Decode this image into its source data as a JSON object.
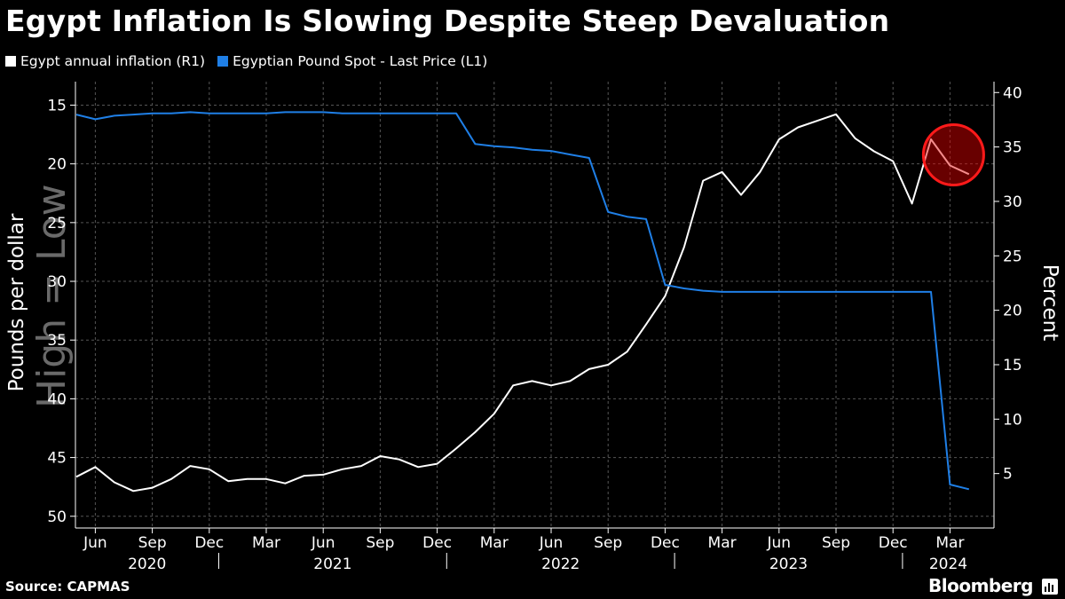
{
  "title": "Egypt Inflation Is Slowing Despite Steep Devaluation",
  "source": "Source: CAPMAS",
  "brand": "Bloomberg",
  "colors": {
    "inflation": "#ffffff",
    "pound": "#1f7fe6",
    "highlight": "#e60000",
    "background": "#000000"
  },
  "chart_data": {
    "type": "line",
    "title": "Egypt Inflation Is Slowing Despite Steep Devaluation",
    "legend": [
      {
        "name": "Egypt annual inflation (R1)",
        "color": "#ffffff"
      },
      {
        "name": "Egyptian Pound Spot - Last Price (L1)",
        "color": "#1f7fe6"
      }
    ],
    "left_axis": {
      "label": "Pounds per dollar",
      "inverted": true,
      "range": [
        13,
        51
      ],
      "ticks": [
        "15",
        "20",
        "25",
        "30",
        "35",
        "40",
        "45",
        "50"
      ]
    },
    "right_axis": {
      "label": "Percent",
      "range": [
        0,
        41
      ],
      "ticks": [
        "5",
        "10",
        "15",
        "20",
        "25",
        "30",
        "35",
        "40"
      ]
    },
    "watermark": "High = Low",
    "x_month_labels": [
      "Jun",
      "Sep",
      "Dec",
      "Mar",
      "Jun",
      "Sep",
      "Dec",
      "Mar",
      "Jun",
      "Sep",
      "Dec",
      "Mar",
      "Jun",
      "Sep",
      "Dec",
      "Mar"
    ],
    "x_year_labels": [
      "2020",
      "2021",
      "2022",
      "2023",
      "2024"
    ],
    "x_start": "2020-05",
    "series": [
      {
        "name": "Egypt annual inflation (R1)",
        "axis": "right",
        "values": [
          4.7,
          5.6,
          4.2,
          3.4,
          3.7,
          4.5,
          5.7,
          5.4,
          4.3,
          4.5,
          4.5,
          4.1,
          4.8,
          4.9,
          5.4,
          5.7,
          6.6,
          6.3,
          5.6,
          5.9,
          7.3,
          8.8,
          10.5,
          13.1,
          13.5,
          13.1,
          13.5,
          14.6,
          15.0,
          16.2,
          18.7,
          21.3,
          25.8,
          31.9,
          32.7,
          30.6,
          32.7,
          35.7,
          36.8,
          37.4,
          38.0,
          35.8,
          34.6,
          33.7,
          29.8,
          35.7,
          33.3,
          32.5
        ]
      },
      {
        "name": "Egyptian Pound Spot - Last Price (L1)",
        "axis": "left",
        "values": [
          15.8,
          16.2,
          15.9,
          15.8,
          15.7,
          15.7,
          15.6,
          15.7,
          15.7,
          15.7,
          15.7,
          15.6,
          15.6,
          15.6,
          15.7,
          15.7,
          15.7,
          15.7,
          15.7,
          15.7,
          15.7,
          18.3,
          18.5,
          18.6,
          18.8,
          18.9,
          19.2,
          19.5,
          24.1,
          24.5,
          24.7,
          30.3,
          30.6,
          30.8,
          30.9,
          30.9,
          30.9,
          30.9,
          30.9,
          30.9,
          30.9,
          30.9,
          30.9,
          30.9,
          30.9,
          30.9,
          47.3,
          47.7
        ]
      }
    ],
    "annotation": {
      "type": "circle",
      "color": "#e60000",
      "note": "highlights latest inflation slowdown"
    }
  }
}
